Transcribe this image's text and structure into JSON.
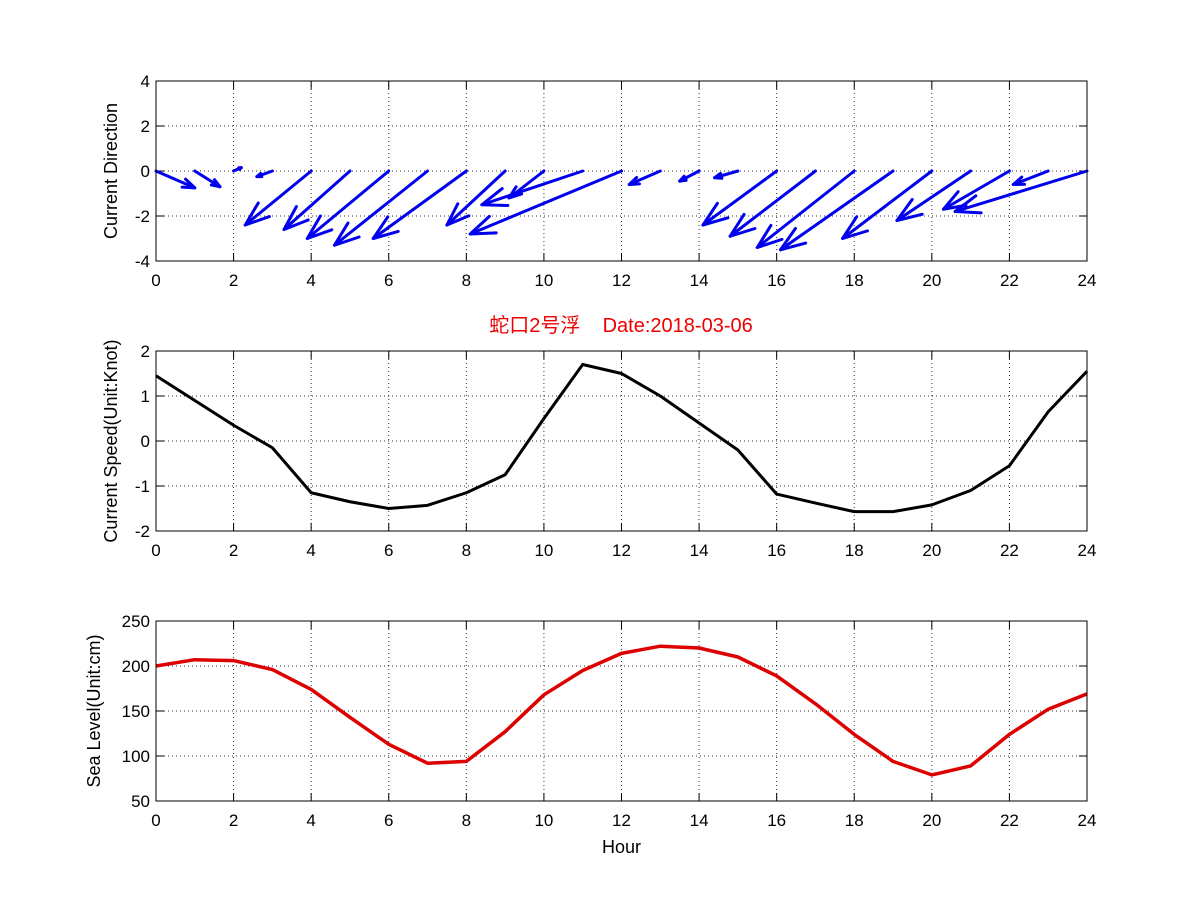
{
  "title": "蛇口2号浮    Date:2018-03-06",
  "colors": {
    "title": "#ee0000",
    "arrows": "#0000ee",
    "speed_line": "#000000",
    "sea_level_line": "#dd0000"
  },
  "chart_data": [
    {
      "type": "quiver",
      "title": "",
      "xlabel": "",
      "ylabel": "Current Direction",
      "xlim": [
        0,
        24
      ],
      "ylim": [
        -4,
        4
      ],
      "xticks": [
        0,
        2,
        4,
        6,
        8,
        10,
        12,
        14,
        16,
        18,
        20,
        22,
        24
      ],
      "yticks": [
        -4,
        -2,
        0,
        2,
        4
      ],
      "grid": true,
      "x": [
        0,
        1,
        2,
        3,
        4,
        5,
        6,
        7,
        8,
        9,
        10,
        11,
        12,
        13,
        14,
        15,
        16,
        17,
        18,
        19,
        20,
        21,
        22,
        23,
        24
      ],
      "u": [
        1.0,
        0.65,
        0.2,
        -0.4,
        -1.7,
        -1.7,
        -2.1,
        -2.4,
        -2.4,
        -1.5,
        -0.9,
        -2.6,
        -3.9,
        -0.8,
        -0.5,
        -0.6,
        -1.9,
        -2.2,
        -2.5,
        -2.9,
        -2.3,
        -1.9,
        -1.7,
        -0.9,
        -3.4
      ],
      "v": [
        -0.75,
        -0.7,
        0.15,
        -0.25,
        -2.4,
        -2.6,
        -3.0,
        -3.3,
        -3.0,
        -2.4,
        -1.2,
        -1.5,
        -2.8,
        -0.6,
        -0.45,
        -0.3,
        -2.4,
        -2.9,
        -3.4,
        -3.5,
        -3.0,
        -2.2,
        -1.7,
        -0.6,
        -1.8
      ]
    },
    {
      "type": "line",
      "title": "",
      "xlabel": "",
      "ylabel": "Current Speed(Unit:Knot)",
      "xlim": [
        0,
        24
      ],
      "ylim": [
        -2,
        2
      ],
      "xticks": [
        0,
        2,
        4,
        6,
        8,
        10,
        12,
        14,
        16,
        18,
        20,
        22,
        24
      ],
      "yticks": [
        -2,
        -1,
        0,
        1,
        2
      ],
      "grid": true,
      "x": [
        0,
        1,
        2,
        3,
        4,
        5,
        6,
        7,
        8,
        9,
        10,
        11,
        12,
        13,
        14,
        15,
        16,
        17,
        18,
        19,
        20,
        21,
        22,
        23,
        24
      ],
      "values": [
        1.45,
        0.9,
        0.35,
        -0.15,
        -1.15,
        -1.35,
        -1.5,
        -1.43,
        -1.15,
        -0.75,
        0.5,
        1.7,
        1.5,
        1.0,
        0.4,
        -0.2,
        -1.18,
        -1.38,
        -1.57,
        -1.57,
        -1.42,
        -1.1,
        -0.55,
        0.65,
        1.55
      ]
    },
    {
      "type": "line",
      "title": "",
      "xlabel": "Hour",
      "ylabel": "Sea Level(Unit:cm)",
      "xlim": [
        0,
        24
      ],
      "ylim": [
        50,
        250
      ],
      "xticks": [
        0,
        2,
        4,
        6,
        8,
        10,
        12,
        14,
        16,
        18,
        20,
        22,
        24
      ],
      "yticks": [
        50,
        100,
        150,
        200,
        250
      ],
      "grid": true,
      "x": [
        0,
        1,
        2,
        3,
        4,
        5,
        6,
        7,
        8,
        9,
        10,
        11,
        12,
        13,
        14,
        15,
        16,
        17,
        18,
        19,
        20,
        21,
        22,
        23,
        24
      ],
      "values": [
        200,
        207,
        206,
        196,
        174,
        143,
        113,
        92,
        94,
        127,
        168,
        195,
        214,
        222,
        220,
        210,
        189,
        158,
        124,
        94,
        79,
        89,
        124,
        152,
        169
      ]
    }
  ]
}
